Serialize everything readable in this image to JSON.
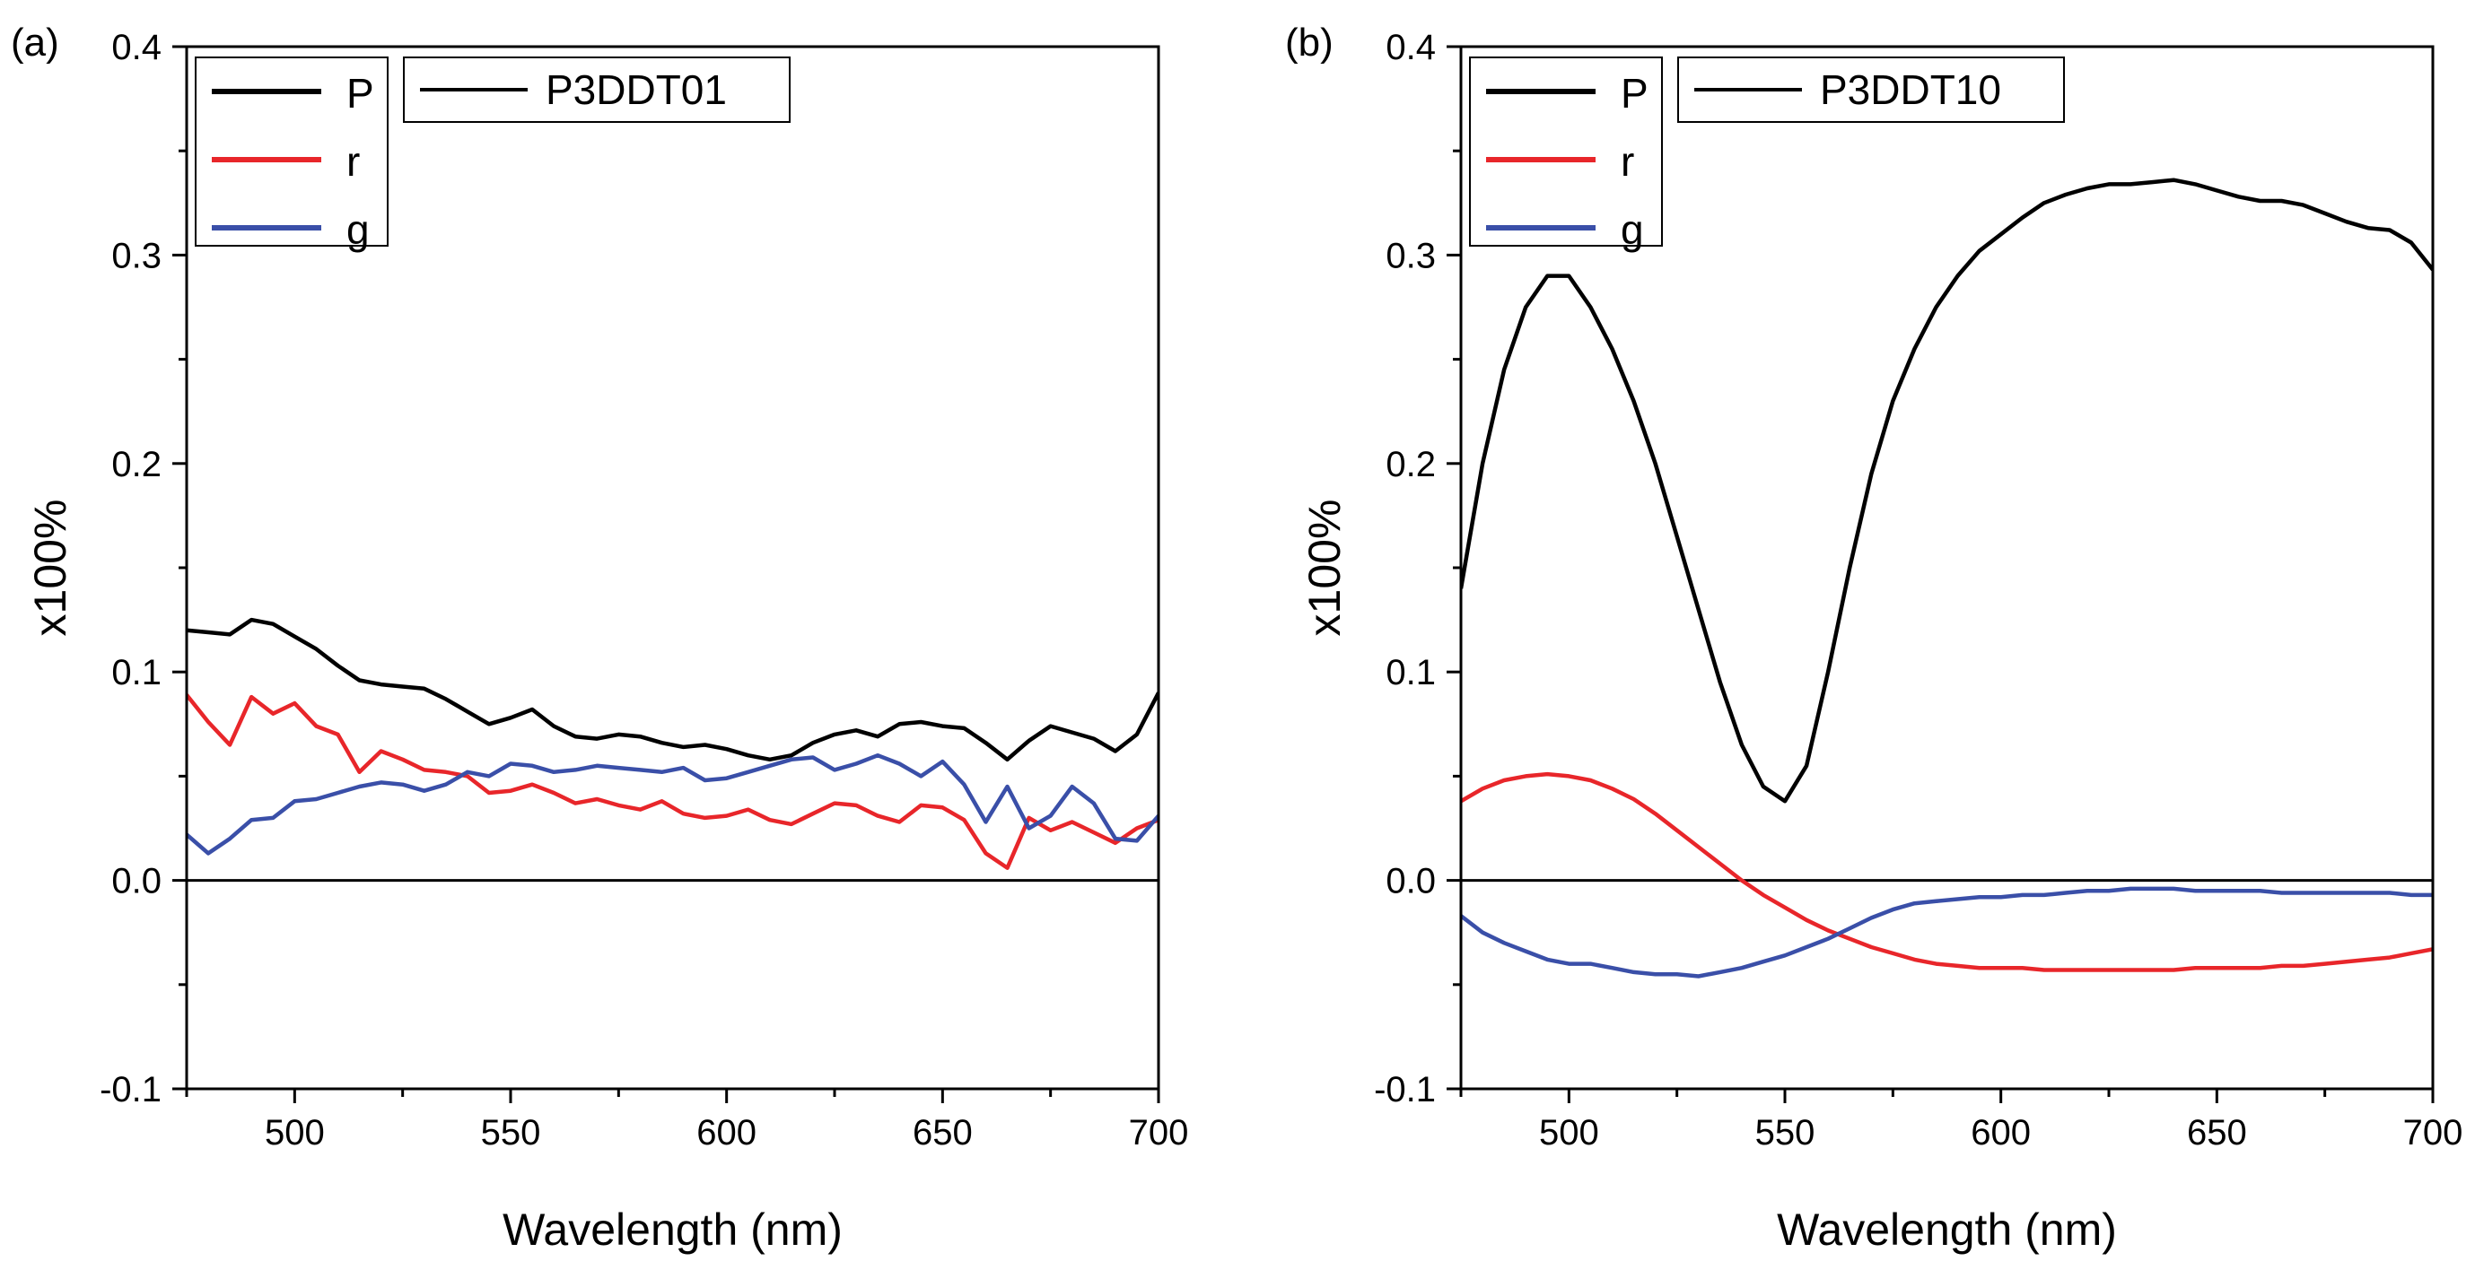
{
  "chart_data": [
    {
      "panel_label": "(a)",
      "type": "line",
      "title": "P3DDT01",
      "xlabel": "Wavelength (nm)",
      "ylabel": "x100%",
      "xlim": [
        475,
        700
      ],
      "ylim": [
        -0.1,
        0.4
      ],
      "x_ticks": [
        500,
        550,
        600,
        650,
        700
      ],
      "y_ticks": [
        -0.1,
        0.0,
        0.1,
        0.2,
        0.3,
        0.4
      ],
      "x_tick_labels": [
        "500",
        "550",
        "600",
        "650",
        "700"
      ],
      "y_tick_labels": [
        "-0.1",
        "0.0",
        "0.1",
        "0.2",
        "0.3",
        "0.4"
      ],
      "zero_line": true,
      "legend_placement": "top-left",
      "x": [
        475,
        480,
        485,
        490,
        495,
        500,
        505,
        510,
        515,
        520,
        525,
        530,
        535,
        540,
        545,
        550,
        555,
        560,
        565,
        570,
        575,
        580,
        585,
        590,
        595,
        600,
        605,
        610,
        615,
        620,
        625,
        630,
        635,
        640,
        645,
        650,
        655,
        660,
        665,
        670,
        675,
        680,
        685,
        690,
        695,
        700
      ],
      "series": [
        {
          "name": "P",
          "color": "#000000",
          "values": [
            0.12,
            0.119,
            0.118,
            0.125,
            0.123,
            0.117,
            0.111,
            0.103,
            0.096,
            0.094,
            0.093,
            0.092,
            0.087,
            0.081,
            0.075,
            0.078,
            0.082,
            0.074,
            0.069,
            0.068,
            0.07,
            0.069,
            0.066,
            0.064,
            0.065,
            0.063,
            0.06,
            0.058,
            0.06,
            0.066,
            0.07,
            0.072,
            0.069,
            0.075,
            0.076,
            0.074,
            0.073,
            0.066,
            0.058,
            0.067,
            0.074,
            0.071,
            0.068,
            0.062,
            0.07,
            0.09
          ]
        },
        {
          "name": "r",
          "color": "#e8262a",
          "values": [
            0.089,
            0.076,
            0.065,
            0.088,
            0.08,
            0.085,
            0.074,
            0.07,
            0.052,
            0.062,
            0.058,
            0.053,
            0.052,
            0.05,
            0.042,
            0.043,
            0.046,
            0.042,
            0.037,
            0.039,
            0.036,
            0.034,
            0.038,
            0.032,
            0.03,
            0.031,
            0.034,
            0.029,
            0.027,
            0.032,
            0.037,
            0.036,
            0.031,
            0.028,
            0.036,
            0.035,
            0.029,
            0.013,
            0.006,
            0.03,
            0.024,
            0.028,
            0.023,
            0.018,
            0.025,
            0.029
          ]
        },
        {
          "name": "g",
          "color": "#3a4fa8",
          "values": [
            0.022,
            0.013,
            0.02,
            0.029,
            0.03,
            0.038,
            0.039,
            0.042,
            0.045,
            0.047,
            0.046,
            0.043,
            0.046,
            0.052,
            0.05,
            0.056,
            0.055,
            0.052,
            0.053,
            0.055,
            0.054,
            0.053,
            0.052,
            0.054,
            0.048,
            0.049,
            0.052,
            0.055,
            0.058,
            0.059,
            0.053,
            0.056,
            0.06,
            0.056,
            0.05,
            0.057,
            0.046,
            0.028,
            0.045,
            0.025,
            0.031,
            0.045,
            0.037,
            0.02,
            0.019,
            0.031
          ]
        }
      ]
    },
    {
      "panel_label": "(b)",
      "type": "line",
      "title": "P3DDT10",
      "xlabel": "Wavelength (nm)",
      "ylabel": "x100%",
      "xlim": [
        475,
        700
      ],
      "ylim": [
        -0.1,
        0.4
      ],
      "x_ticks": [
        500,
        550,
        600,
        650,
        700
      ],
      "y_ticks": [
        -0.1,
        0.0,
        0.1,
        0.2,
        0.3,
        0.4
      ],
      "x_tick_labels": [
        "500",
        "550",
        "600",
        "650",
        "700"
      ],
      "y_tick_labels": [
        "-0.1",
        "0.0",
        "0.1",
        "0.2",
        "0.3",
        "0.4"
      ],
      "zero_line": true,
      "legend_placement": "top-left",
      "x": [
        475,
        480,
        485,
        490,
        495,
        500,
        505,
        510,
        515,
        520,
        525,
        530,
        535,
        540,
        545,
        550,
        555,
        560,
        565,
        570,
        575,
        580,
        585,
        590,
        595,
        600,
        605,
        610,
        615,
        620,
        625,
        630,
        635,
        640,
        645,
        650,
        655,
        660,
        665,
        670,
        675,
        680,
        685,
        690,
        695,
        700
      ],
      "series": [
        {
          "name": "P",
          "color": "#000000",
          "values": [
            0.14,
            0.2,
            0.245,
            0.275,
            0.29,
            0.29,
            0.275,
            0.255,
            0.23,
            0.2,
            0.165,
            0.13,
            0.095,
            0.065,
            0.045,
            0.038,
            0.055,
            0.1,
            0.15,
            0.195,
            0.23,
            0.255,
            0.275,
            0.29,
            0.302,
            0.31,
            0.318,
            0.325,
            0.329,
            0.332,
            0.334,
            0.334,
            0.335,
            0.336,
            0.334,
            0.331,
            0.328,
            0.326,
            0.326,
            0.324,
            0.32,
            0.316,
            0.313,
            0.312,
            0.306,
            0.293
          ]
        },
        {
          "name": "r",
          "color": "#e8262a",
          "values": [
            0.038,
            0.044,
            0.048,
            0.05,
            0.051,
            0.05,
            0.048,
            0.044,
            0.039,
            0.032,
            0.024,
            0.016,
            0.008,
            0.0,
            -0.007,
            -0.013,
            -0.019,
            -0.024,
            -0.028,
            -0.032,
            -0.035,
            -0.038,
            -0.04,
            -0.041,
            -0.042,
            -0.042,
            -0.042,
            -0.043,
            -0.043,
            -0.043,
            -0.043,
            -0.043,
            -0.043,
            -0.043,
            -0.042,
            -0.042,
            -0.042,
            -0.042,
            -0.041,
            -0.041,
            -0.04,
            -0.039,
            -0.038,
            -0.037,
            -0.035,
            -0.033
          ]
        },
        {
          "name": "g",
          "color": "#3a4fa8",
          "values": [
            -0.017,
            -0.025,
            -0.03,
            -0.034,
            -0.038,
            -0.04,
            -0.04,
            -0.042,
            -0.044,
            -0.045,
            -0.045,
            -0.046,
            -0.044,
            -0.042,
            -0.039,
            -0.036,
            -0.032,
            -0.028,
            -0.023,
            -0.018,
            -0.014,
            -0.011,
            -0.01,
            -0.009,
            -0.008,
            -0.008,
            -0.007,
            -0.007,
            -0.006,
            -0.005,
            -0.005,
            -0.004,
            -0.004,
            -0.004,
            -0.005,
            -0.005,
            -0.005,
            -0.005,
            -0.006,
            -0.006,
            -0.006,
            -0.006,
            -0.006,
            -0.006,
            -0.007,
            -0.007
          ]
        }
      ]
    }
  ]
}
